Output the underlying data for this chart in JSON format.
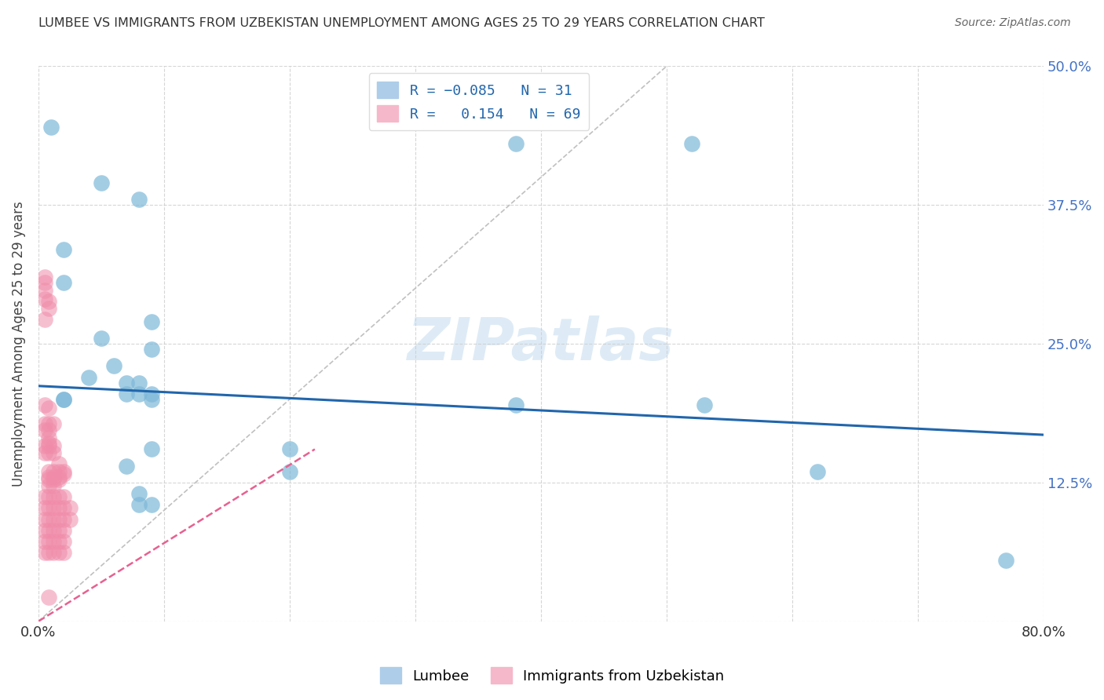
{
  "title": "LUMBEE VS IMMIGRANTS FROM UZBEKISTAN UNEMPLOYMENT AMONG AGES 25 TO 29 YEARS CORRELATION CHART",
  "source": "Source: ZipAtlas.com",
  "ylabel_label": "Unemployment Among Ages 25 to 29 years",
  "xlim": [
    0.0,
    0.8
  ],
  "ylim": [
    0.0,
    0.5
  ],
  "yticks": [
    0.0,
    0.125,
    0.25,
    0.375,
    0.5
  ],
  "ytick_labels": [
    "",
    "12.5%",
    "25.0%",
    "37.5%",
    "50.0%"
  ],
  "xticks": [
    0.0,
    0.1,
    0.2,
    0.3,
    0.4,
    0.5,
    0.6,
    0.7,
    0.8
  ],
  "xtick_labels": [
    "0.0%",
    "",
    "",
    "",
    "",
    "",
    "",
    "",
    "80.0%"
  ],
  "watermark": "ZIPatlas",
  "lumbee_color": "#7db8d8",
  "uzbek_color": "#f08caa",
  "lumbee_line_color": "#2166ac",
  "uzbek_line_color": "#e86090",
  "lumbee_line_start_y": 0.212,
  "lumbee_line_end_y": 0.168,
  "uzbek_line_x0": 0.0,
  "uzbek_line_y0": 0.0,
  "uzbek_line_x1": 0.22,
  "uzbek_line_y1": 0.155,
  "diag_line_x0": 0.0,
  "diag_line_y0": 0.0,
  "diag_line_x1": 0.5,
  "diag_line_y1": 0.5,
  "lumbee_scatter": [
    [
      0.01,
      0.445
    ],
    [
      0.02,
      0.335
    ],
    [
      0.05,
      0.395
    ],
    [
      0.08,
      0.38
    ],
    [
      0.02,
      0.305
    ],
    [
      0.09,
      0.27
    ],
    [
      0.05,
      0.255
    ],
    [
      0.09,
      0.245
    ],
    [
      0.08,
      0.215
    ],
    [
      0.04,
      0.22
    ],
    [
      0.07,
      0.215
    ],
    [
      0.02,
      0.2
    ],
    [
      0.06,
      0.23
    ],
    [
      0.02,
      0.2
    ],
    [
      0.09,
      0.205
    ],
    [
      0.08,
      0.205
    ],
    [
      0.07,
      0.205
    ],
    [
      0.09,
      0.2
    ],
    [
      0.09,
      0.155
    ],
    [
      0.07,
      0.14
    ],
    [
      0.08,
      0.115
    ],
    [
      0.08,
      0.105
    ],
    [
      0.09,
      0.105
    ],
    [
      0.2,
      0.155
    ],
    [
      0.2,
      0.135
    ],
    [
      0.38,
      0.195
    ],
    [
      0.38,
      0.43
    ],
    [
      0.52,
      0.43
    ],
    [
      0.53,
      0.195
    ],
    [
      0.62,
      0.135
    ],
    [
      0.77,
      0.055
    ]
  ],
  "uzbek_scatter": [
    [
      0.005,
      0.31
    ],
    [
      0.005,
      0.305
    ],
    [
      0.005,
      0.298
    ],
    [
      0.005,
      0.29
    ],
    [
      0.008,
      0.288
    ],
    [
      0.008,
      0.282
    ],
    [
      0.005,
      0.272
    ],
    [
      0.005,
      0.195
    ],
    [
      0.008,
      0.192
    ],
    [
      0.005,
      0.178
    ],
    [
      0.005,
      0.172
    ],
    [
      0.008,
      0.178
    ],
    [
      0.008,
      0.172
    ],
    [
      0.012,
      0.178
    ],
    [
      0.008,
      0.165
    ],
    [
      0.008,
      0.16
    ],
    [
      0.005,
      0.158
    ],
    [
      0.005,
      0.152
    ],
    [
      0.008,
      0.158
    ],
    [
      0.008,
      0.152
    ],
    [
      0.012,
      0.158
    ],
    [
      0.012,
      0.152
    ],
    [
      0.016,
      0.142
    ],
    [
      0.008,
      0.135
    ],
    [
      0.008,
      0.13
    ],
    [
      0.012,
      0.135
    ],
    [
      0.012,
      0.13
    ],
    [
      0.016,
      0.135
    ],
    [
      0.016,
      0.13
    ],
    [
      0.02,
      0.135
    ],
    [
      0.008,
      0.128
    ],
    [
      0.008,
      0.122
    ],
    [
      0.012,
      0.128
    ],
    [
      0.012,
      0.122
    ],
    [
      0.016,
      0.128
    ],
    [
      0.02,
      0.133
    ],
    [
      0.005,
      0.112
    ],
    [
      0.008,
      0.112
    ],
    [
      0.012,
      0.112
    ],
    [
      0.016,
      0.112
    ],
    [
      0.02,
      0.112
    ],
    [
      0.005,
      0.102
    ],
    [
      0.008,
      0.102
    ],
    [
      0.012,
      0.102
    ],
    [
      0.016,
      0.102
    ],
    [
      0.02,
      0.102
    ],
    [
      0.025,
      0.102
    ],
    [
      0.005,
      0.092
    ],
    [
      0.008,
      0.092
    ],
    [
      0.012,
      0.092
    ],
    [
      0.016,
      0.092
    ],
    [
      0.02,
      0.092
    ],
    [
      0.025,
      0.092
    ],
    [
      0.005,
      0.082
    ],
    [
      0.008,
      0.082
    ],
    [
      0.012,
      0.082
    ],
    [
      0.016,
      0.082
    ],
    [
      0.02,
      0.082
    ],
    [
      0.005,
      0.072
    ],
    [
      0.008,
      0.072
    ],
    [
      0.012,
      0.072
    ],
    [
      0.016,
      0.072
    ],
    [
      0.02,
      0.072
    ],
    [
      0.005,
      0.062
    ],
    [
      0.008,
      0.062
    ],
    [
      0.012,
      0.062
    ],
    [
      0.016,
      0.062
    ],
    [
      0.02,
      0.062
    ],
    [
      0.008,
      0.022
    ]
  ]
}
